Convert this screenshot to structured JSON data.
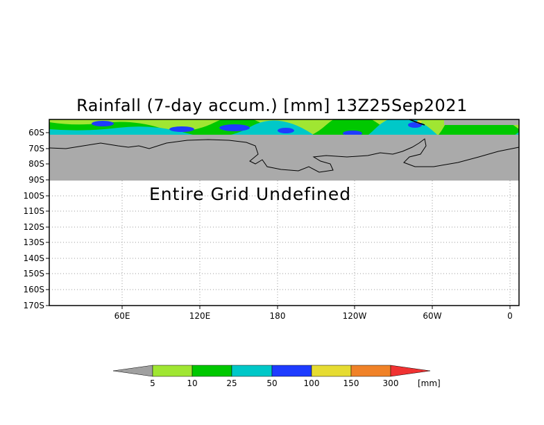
{
  "title": "Rainfall (7-day accum.) [mm] 13Z25Sep2021",
  "message": "Entire Grid Undefined",
  "lat_labels": [
    "60S",
    "70S",
    "80S",
    "90S",
    "100S",
    "110S",
    "120S",
    "130S",
    "140S",
    "150S",
    "160S",
    "170S"
  ],
  "lon_labels": [
    "60E",
    "120E",
    "180",
    "120W",
    "60W",
    "0"
  ],
  "colorbar": {
    "ticks": [
      "5",
      "10",
      "25",
      "50",
      "100",
      "150",
      "300"
    ],
    "unit": "[mm]",
    "colors": {
      "below": "#a0a0a0",
      "bins": [
        "#a0e632",
        "#00c800",
        "#00c8c8",
        "#1e3cff",
        "#e6dc32",
        "#f08228"
      ],
      "above": "#f03232"
    }
  },
  "colors": {
    "land": "#aaaaaa",
    "ocean_rain": "#a0e632"
  }
}
